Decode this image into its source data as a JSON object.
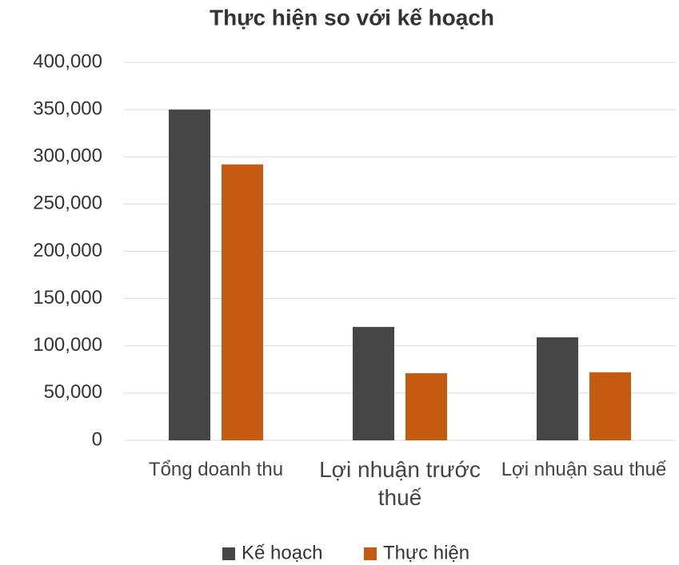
{
  "chart_data": {
    "type": "bar",
    "title": "Thực hiện so với kế hoạch",
    "categories": [
      "Tổng doanh thu",
      "Lợi nhuận trước thuế",
      "Lợi nhuận sau thuế"
    ],
    "series": [
      {
        "name": "Kế hoạch",
        "color": "#464646",
        "values": [
          350000,
          120000,
          109000
        ]
      },
      {
        "name": "Thực hiện",
        "color": "#c55a11",
        "values": [
          292000,
          71000,
          72000
        ]
      }
    ],
    "ylim": [
      0,
      400000
    ],
    "yticks": [
      0,
      {
        "value": 50000,
        "label": "50,000"
      },
      {
        "value": 100000,
        "label": "100,000"
      },
      {
        "value": 150000,
        "label": "150,000"
      },
      {
        "value": 200000,
        "label": "200,000"
      },
      {
        "value": 250000,
        "label": "250,000"
      },
      {
        "value": 300000,
        "label": "300,000"
      },
      {
        "value": 350000,
        "label": "350,000"
      },
      {
        "value": 400000,
        "label": "400,000"
      }
    ],
    "grid": true,
    "legend": "bottom"
  }
}
